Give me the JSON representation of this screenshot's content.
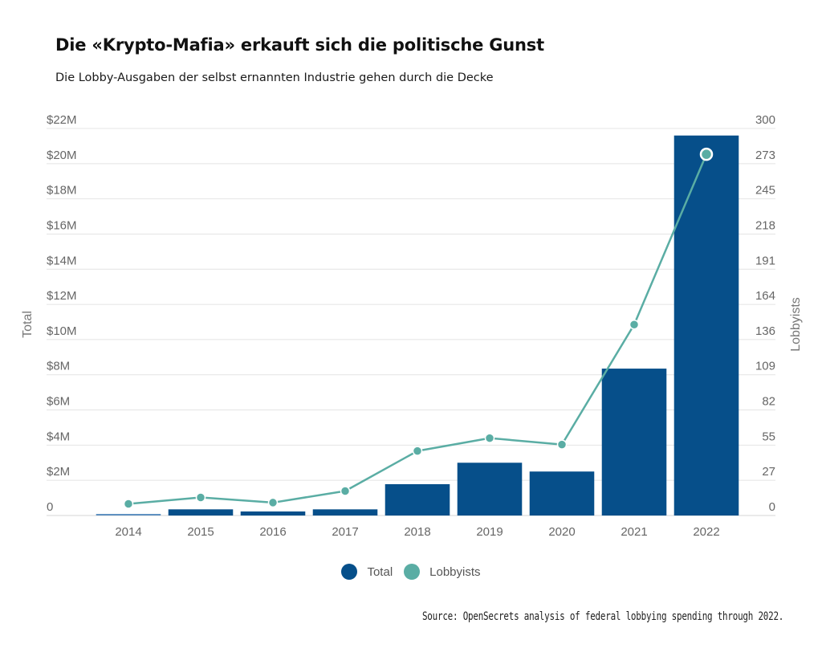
{
  "header": {
    "title": "Die «Krypto-Mafia» erkauft sich die politische Gunst",
    "subtitle": "Die Lobby-Ausgaben der selbst ernannten Industrie gehen durch die Decke"
  },
  "colors": {
    "total": "#064f8a",
    "total_highlight": "#5d8fc0",
    "lobbyists": "#5aada4",
    "grid": "#e4e4e4"
  },
  "chart_data": {
    "type": "bar",
    "title": "Die «Krypto-Mafia» erkauft sich die politische Gunst",
    "subtitle": "Die Lobby-Ausgaben der selbst ernannten Industrie gehen durch die Decke",
    "categories": [
      "2014",
      "2015",
      "2016",
      "2017",
      "2018",
      "2019",
      "2020",
      "2021",
      "2022"
    ],
    "series": [
      {
        "name": "Total",
        "type": "bar",
        "axis": "left",
        "unit": "USD millions",
        "values": [
          0.09,
          0.35,
          0.23,
          0.35,
          1.78,
          3.0,
          2.5,
          8.35,
          21.6
        ]
      },
      {
        "name": "Lobbyists",
        "type": "line",
        "axis": "right",
        "values": [
          9,
          14,
          10,
          19,
          50,
          60,
          55,
          148,
          280
        ]
      }
    ],
    "y_left": {
      "label": "Total",
      "range": [
        0,
        22
      ],
      "ticks": [
        0,
        2,
        4,
        6,
        8,
        10,
        12,
        14,
        16,
        18,
        20,
        22
      ],
      "tick_labels": [
        "0",
        "$2M",
        "$4M",
        "$6M",
        "$8M",
        "$10M",
        "$12M",
        "$14M",
        "$16M",
        "$18M",
        "$20M",
        "$22M"
      ]
    },
    "y_right": {
      "label": "Lobbyists",
      "range": [
        0,
        300
      ],
      "tick_labels": [
        "0",
        "27",
        "55",
        "82",
        "109",
        "136",
        "164",
        "191",
        "218",
        "245",
        "273",
        "300"
      ]
    },
    "xlabel": "",
    "grid": true,
    "legend": {
      "placement": "bottom-center",
      "entries": [
        "Total",
        "Lobbyists"
      ]
    },
    "highlighted_category": "2022"
  },
  "footer": {
    "source": "Source: OpenSecrets analysis of federal lobbying spending through 2022."
  }
}
